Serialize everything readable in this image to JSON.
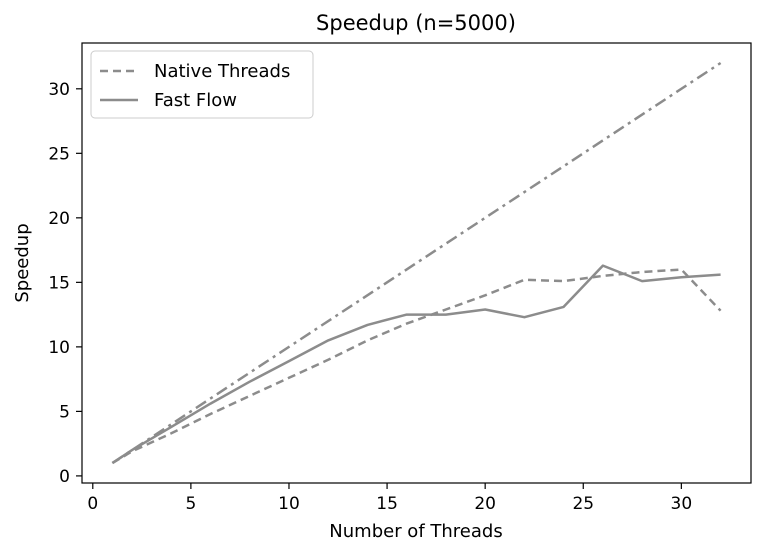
{
  "chart_data": {
    "type": "line",
    "title": "Speedup (n=5000)",
    "xlabel": "Number of Threads",
    "ylabel": "Speedup",
    "xlim": [
      -0.55,
      33.55
    ],
    "ylim": [
      -0.55,
      33.55
    ],
    "xticks": [
      0,
      5,
      10,
      15,
      20,
      25,
      30
    ],
    "yticks": [
      0,
      5,
      10,
      15,
      20,
      25,
      30
    ],
    "grid": false,
    "legend_position": "upper-left",
    "line_color": "#8c8c8c",
    "series": [
      {
        "name": "Native Threads",
        "style": "dashed",
        "x": [
          1,
          2,
          4,
          6,
          8,
          10,
          12,
          14,
          16,
          18,
          20,
          22,
          24,
          26,
          28,
          30,
          32
        ],
        "y": [
          1.0,
          1.9,
          3.3,
          4.8,
          6.2,
          7.6,
          9.0,
          10.5,
          11.8,
          12.9,
          14.0,
          15.2,
          15.1,
          15.5,
          15.8,
          16.0,
          12.8
        ]
      },
      {
        "name": "Fast Flow",
        "style": "solid",
        "x": [
          1,
          2,
          4,
          6,
          8,
          10,
          12,
          14,
          16,
          18,
          20,
          22,
          24,
          26,
          28,
          30,
          32
        ],
        "y": [
          1.0,
          2.0,
          3.8,
          5.6,
          7.3,
          8.9,
          10.5,
          11.7,
          12.5,
          12.5,
          12.9,
          12.3,
          13.1,
          16.3,
          15.1,
          15.4,
          15.6
        ]
      },
      {
        "style": "dashdot",
        "x": [
          1,
          32
        ],
        "y": [
          1,
          32
        ]
      }
    ]
  }
}
